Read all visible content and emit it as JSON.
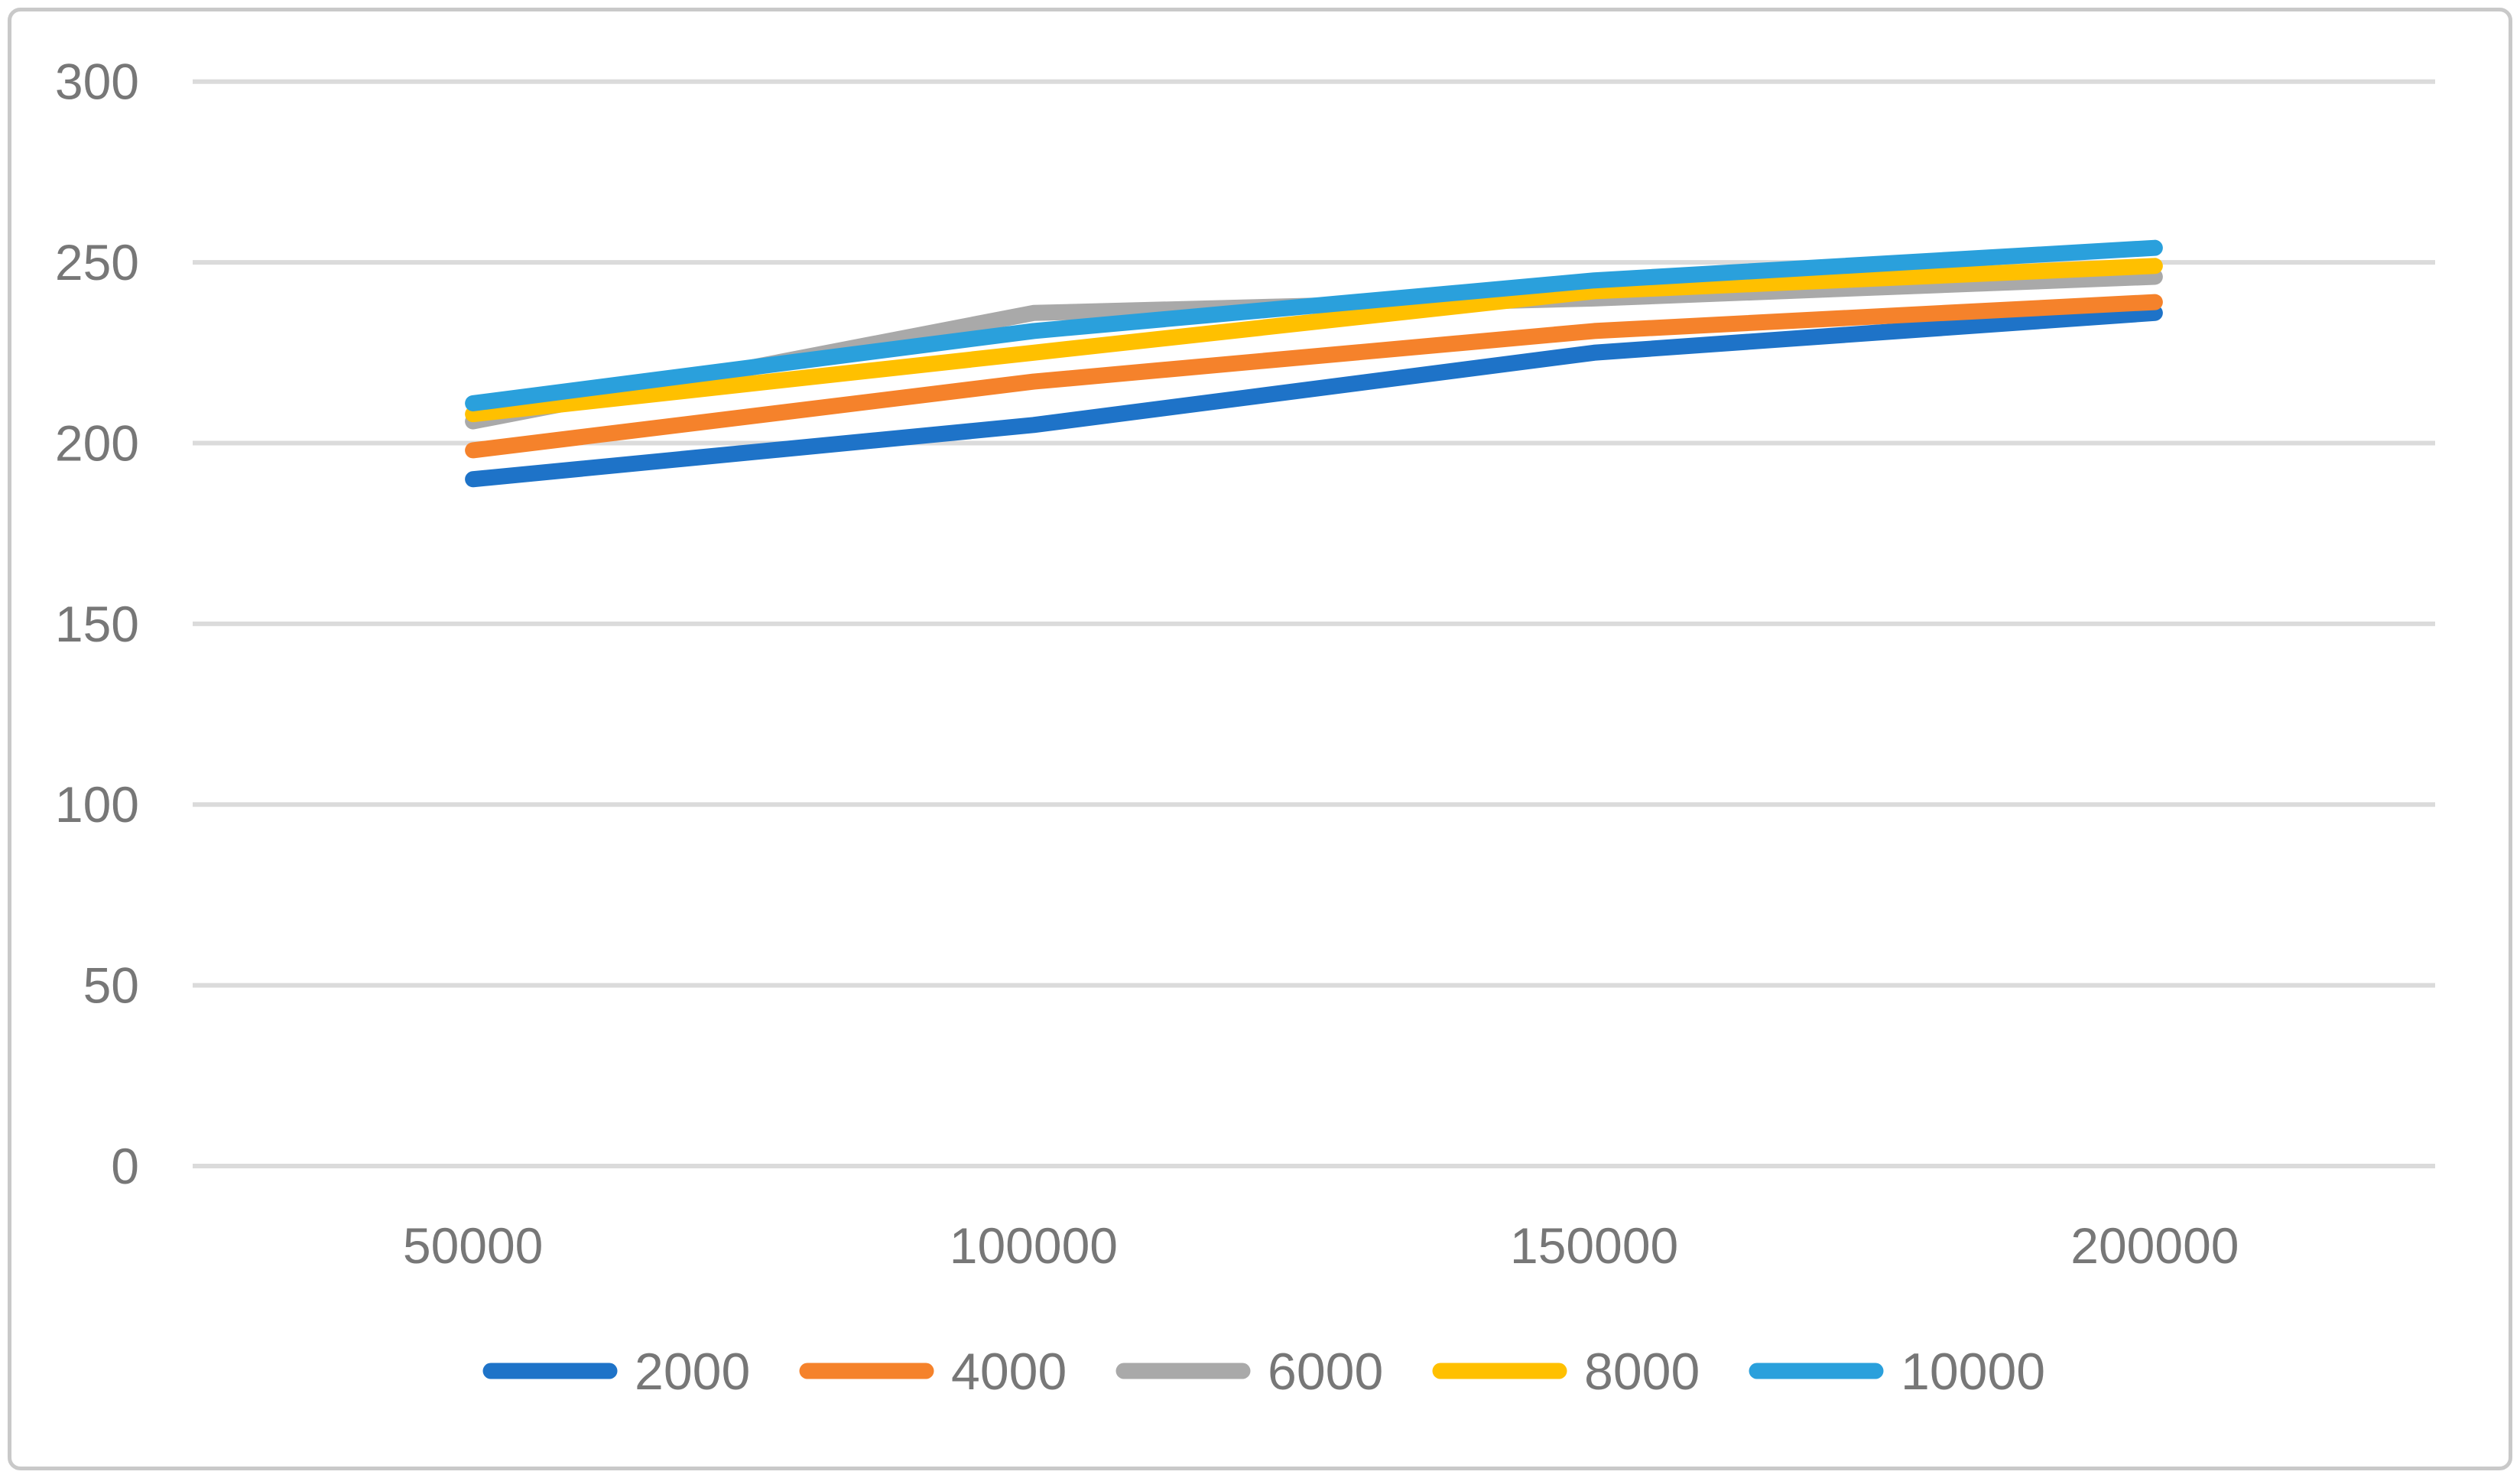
{
  "figure": {
    "background": "#ffffff",
    "border_color": "#c9c9c9"
  },
  "chart_data": {
    "type": "line",
    "title": "",
    "xlabel": "",
    "ylabel": "",
    "categories": [
      "50000",
      "100000",
      "150000",
      "200000"
    ],
    "series": [
      {
        "name": "2000",
        "color": "#1E73C8",
        "values": [
          190,
          205,
          225,
          236
        ]
      },
      {
        "name": "4000",
        "color": "#F5822B",
        "values": [
          198,
          217,
          231,
          239
        ]
      },
      {
        "name": "6000",
        "color": "#A9A9A9",
        "values": [
          206,
          236,
          240,
          246
        ]
      },
      {
        "name": "8000",
        "color": "#FFC000",
        "values": [
          208,
          225,
          242,
          249
        ]
      },
      {
        "name": "10000",
        "color": "#2AA0DC",
        "values": [
          211,
          231,
          245,
          254
        ]
      }
    ],
    "y_ticks": [
      0,
      50,
      100,
      150,
      200,
      250,
      300
    ],
    "ylim": [
      0,
      300
    ],
    "grid": true,
    "gridline_color": "#DBDBDB",
    "tick_label_color": "#777777",
    "legend_position": "bottom",
    "line_width": 21
  }
}
